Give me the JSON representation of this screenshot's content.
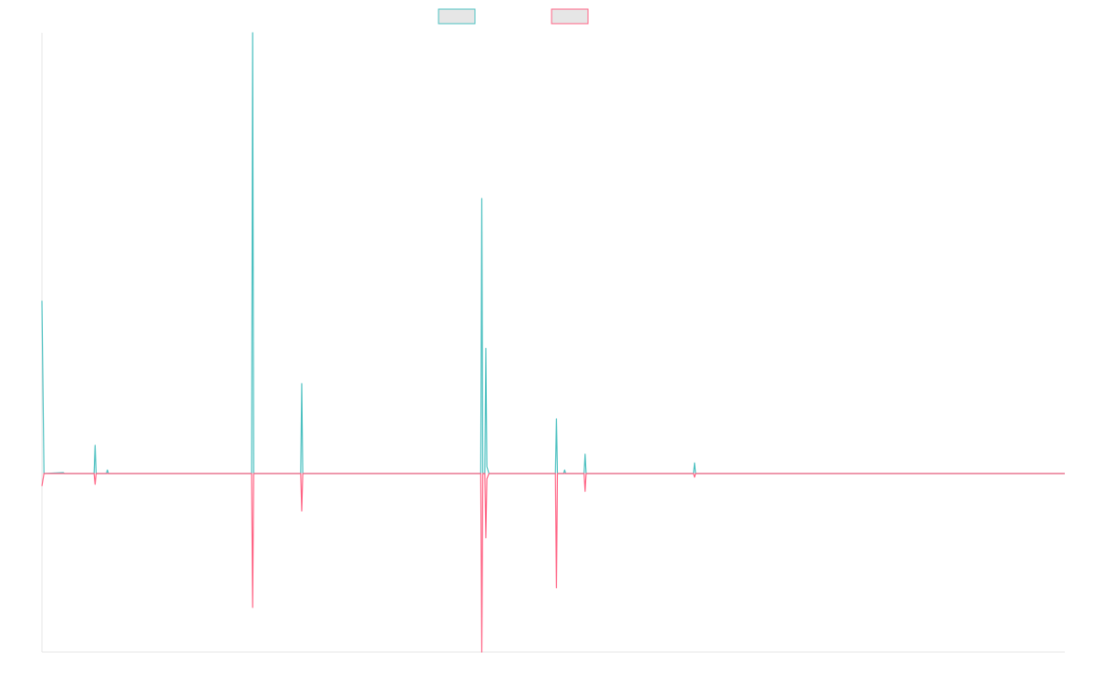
{
  "chart_data": {
    "type": "line",
    "title": "",
    "xlabel": "",
    "ylabel": "",
    "grid": false,
    "legend_position": "top-center",
    "xlim": [
      0,
      1000
    ],
    "ylim": [
      -100,
      100
    ],
    "series": [
      {
        "name": "",
        "color": "#4bc0c0",
        "fill": "#e6e6e6",
        "points": [
          [
            0,
            98
          ],
          [
            2,
            0
          ],
          [
            21,
            0.5
          ],
          [
            22,
            0
          ],
          [
            51,
            0
          ],
          [
            52,
            16
          ],
          [
            53,
            0
          ],
          [
            63,
            0
          ],
          [
            64,
            2
          ],
          [
            65,
            0
          ],
          [
            205,
            0
          ],
          [
            206,
            250
          ],
          [
            207,
            0
          ],
          [
            253,
            0
          ],
          [
            254,
            51
          ],
          [
            255,
            0
          ],
          [
            429,
            0
          ],
          [
            430,
            156
          ],
          [
            431,
            0
          ],
          [
            433,
            0
          ],
          [
            434,
            71
          ],
          [
            435,
            4
          ],
          [
            437,
            0
          ],
          [
            502,
            0
          ],
          [
            503,
            31
          ],
          [
            504,
            0
          ],
          [
            510,
            0
          ],
          [
            511,
            2
          ],
          [
            512,
            0
          ],
          [
            530,
            0
          ],
          [
            531,
            11
          ],
          [
            532,
            0
          ],
          [
            637,
            0
          ],
          [
            638,
            6
          ],
          [
            639,
            0
          ],
          [
            1000,
            0
          ]
        ]
      },
      {
        "name": "",
        "color": "#ff6384",
        "fill": "#e6e6e6",
        "points": [
          [
            0,
            -7
          ],
          [
            2,
            0
          ],
          [
            51,
            0
          ],
          [
            52,
            -6
          ],
          [
            53,
            0
          ],
          [
            205,
            0
          ],
          [
            206,
            -75
          ],
          [
            207,
            0
          ],
          [
            253,
            0
          ],
          [
            254,
            -21
          ],
          [
            255,
            0
          ],
          [
            429,
            0
          ],
          [
            430,
            -100
          ],
          [
            431,
            0
          ],
          [
            433,
            0
          ],
          [
            434,
            -36
          ],
          [
            435,
            -3
          ],
          [
            437,
            0
          ],
          [
            502,
            0
          ],
          [
            503,
            -64
          ],
          [
            504,
            0
          ],
          [
            530,
            0
          ],
          [
            531,
            -10
          ],
          [
            532,
            0
          ],
          [
            637,
            0
          ],
          [
            638,
            -2
          ],
          [
            639,
            0
          ],
          [
            1000,
            0
          ]
        ]
      }
    ]
  }
}
